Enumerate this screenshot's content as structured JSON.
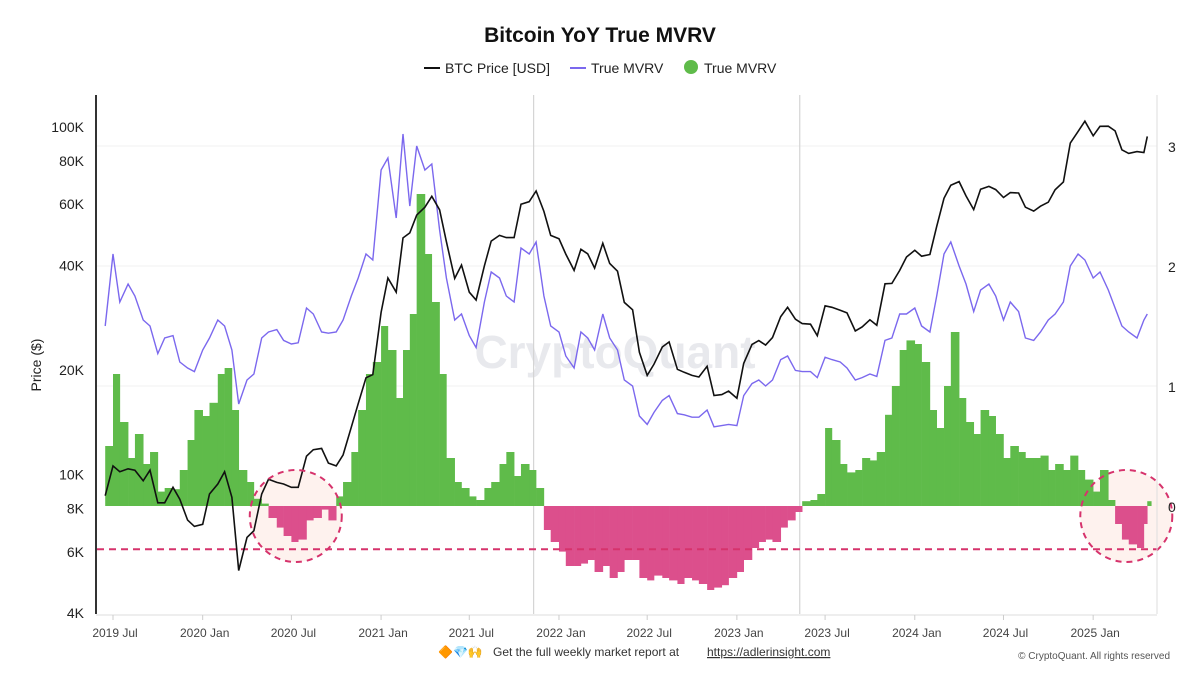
{
  "chart_data": {
    "type": "bar+line",
    "title": "Bitcoin YoY True MVRV",
    "legend": {
      "placement": "top-center",
      "items": [
        {
          "label": "BTC Price [USD]",
          "marker": "line",
          "color": "#111111"
        },
        {
          "label": "True MVRV",
          "marker": "line",
          "color": "#7b68ee"
        },
        {
          "label": "True MVRV",
          "marker": "dot",
          "color": "#5fbb4a"
        }
      ]
    },
    "ylabel_left": "Price ($)",
    "y_left_scale": "log",
    "y_left_range": [
      4000,
      120000
    ],
    "y_left_ticks": [
      {
        "value": 100000,
        "label": "100K"
      },
      {
        "value": 80000,
        "label": "80K"
      },
      {
        "value": 60000,
        "label": "60K"
      },
      {
        "value": 40000,
        "label": "40K"
      },
      {
        "value": 20000,
        "label": "20K"
      },
      {
        "value": 10000,
        "label": "10K"
      },
      {
        "value": 8000,
        "label": "8K"
      },
      {
        "value": 6000,
        "label": "6K"
      },
      {
        "value": 4000,
        "label": "4K"
      }
    ],
    "y_right_range": [
      -0.9,
      3.5
    ],
    "y_right_ticks": [
      {
        "value": 0,
        "label": "0"
      },
      {
        "value": 1,
        "label": "1"
      },
      {
        "value": 2,
        "label": "2"
      },
      {
        "value": 3,
        "label": "3"
      }
    ],
    "x_ticks": [
      {
        "date": "2019-07-01",
        "label": "2019 Jul"
      },
      {
        "date": "2020-01-01",
        "label": "2020 Jan"
      },
      {
        "date": "2020-07-01",
        "label": "2020 Jul"
      },
      {
        "date": "2021-01-01",
        "label": "2021 Jan"
      },
      {
        "date": "2021-07-01",
        "label": "2021 Jul"
      },
      {
        "date": "2022-01-01",
        "label": "2022 Jan"
      },
      {
        "date": "2022-07-01",
        "label": "2022 Jul"
      },
      {
        "date": "2023-01-01",
        "label": "2023 Jan"
      },
      {
        "date": "2023-07-01",
        "label": "2023 Jul"
      },
      {
        "date": "2024-01-01",
        "label": "2024 Jan"
      },
      {
        "date": "2024-07-01",
        "label": "2024 Jul"
      },
      {
        "date": "2025-01-01",
        "label": "2025 Jan"
      }
    ],
    "grid": "horizontal at right-axis ticks",
    "vertical_markers": [
      "2021-11-10",
      "2023-05-10"
    ],
    "threshold_line": {
      "value": -0.36,
      "axis": "right",
      "style": "dashed",
      "color": "#d6336c"
    },
    "highlight_circles": [
      {
        "date": "2020-07-10"
      },
      {
        "date": "2025-03-10"
      }
    ],
    "colors": {
      "price": "#111111",
      "mvrv": "#7b68ee",
      "positive": "#5fbb4a",
      "negative": "#dc4f8c"
    },
    "dates": [
      "2019-06-15",
      "2019-07-01",
      "2019-07-15",
      "2019-08-01",
      "2019-08-15",
      "2019-09-01",
      "2019-09-15",
      "2019-10-01",
      "2019-10-15",
      "2019-11-01",
      "2019-11-15",
      "2019-12-01",
      "2019-12-15",
      "2020-01-01",
      "2020-01-15",
      "2020-02-01",
      "2020-02-15",
      "2020-03-01",
      "2020-03-15",
      "2020-04-01",
      "2020-04-15",
      "2020-05-01",
      "2020-05-15",
      "2020-06-01",
      "2020-06-15",
      "2020-07-01",
      "2020-07-15",
      "2020-08-01",
      "2020-08-15",
      "2020-09-01",
      "2020-09-15",
      "2020-10-01",
      "2020-10-15",
      "2020-11-01",
      "2020-11-15",
      "2020-12-01",
      "2020-12-15",
      "2021-01-01",
      "2021-01-15",
      "2021-02-01",
      "2021-02-15",
      "2021-03-01",
      "2021-03-15",
      "2021-04-01",
      "2021-04-15",
      "2021-05-01",
      "2021-05-15",
      "2021-06-01",
      "2021-06-15",
      "2021-07-01",
      "2021-07-15",
      "2021-08-01",
      "2021-08-15",
      "2021-09-01",
      "2021-09-15",
      "2021-10-01",
      "2021-10-15",
      "2021-11-01",
      "2021-11-15",
      "2021-12-01",
      "2021-12-15",
      "2022-01-01",
      "2022-01-15",
      "2022-02-01",
      "2022-02-15",
      "2022-03-01",
      "2022-03-15",
      "2022-04-01",
      "2022-04-15",
      "2022-05-01",
      "2022-05-15",
      "2022-06-01",
      "2022-06-15",
      "2022-07-01",
      "2022-07-15",
      "2022-08-01",
      "2022-08-15",
      "2022-09-01",
      "2022-09-15",
      "2022-10-01",
      "2022-10-15",
      "2022-11-01",
      "2022-11-15",
      "2022-12-01",
      "2022-12-15",
      "2023-01-01",
      "2023-01-15",
      "2023-02-01",
      "2023-02-15",
      "2023-03-01",
      "2023-03-15",
      "2023-04-01",
      "2023-04-15",
      "2023-05-01",
      "2023-05-15",
      "2023-06-01",
      "2023-06-15",
      "2023-07-01",
      "2023-07-15",
      "2023-08-01",
      "2023-08-15",
      "2023-09-01",
      "2023-09-15",
      "2023-10-01",
      "2023-10-15",
      "2023-11-01",
      "2023-11-15",
      "2023-12-01",
      "2023-12-15",
      "2024-01-01",
      "2024-01-15",
      "2024-02-01",
      "2024-02-15",
      "2024-03-01",
      "2024-03-15",
      "2024-04-01",
      "2024-04-15",
      "2024-05-01",
      "2024-05-15",
      "2024-06-01",
      "2024-06-15",
      "2024-07-01",
      "2024-07-15",
      "2024-08-01",
      "2024-08-15",
      "2024-09-01",
      "2024-09-15",
      "2024-10-01",
      "2024-10-15",
      "2024-11-01",
      "2024-11-15",
      "2024-12-01",
      "2024-12-15",
      "2025-01-01",
      "2025-01-15",
      "2025-02-01",
      "2025-02-15",
      "2025-03-01",
      "2025-03-15",
      "2025-04-01",
      "2025-04-15",
      "2025-04-22"
    ],
    "series": [
      {
        "name": "BTC Price [USD]",
        "axis": "left",
        "kind": "line",
        "values": [
          8700,
          10600,
          10200,
          10400,
          10300,
          9600,
          10300,
          8300,
          8300,
          9200,
          8500,
          7400,
          7100,
          7200,
          8800,
          9400,
          10200,
          8600,
          5300,
          6600,
          6900,
          8800,
          9700,
          9500,
          9400,
          9200,
          9200,
          11300,
          11800,
          11900,
          10800,
          10600,
          11400,
          13700,
          16000,
          19000,
          19400,
          29300,
          36800,
          33500,
          48000,
          49600,
          55800,
          58800,
          63200,
          57800,
          46800,
          36700,
          40100,
          33500,
          31800,
          39900,
          47000,
          48800,
          48100,
          48100,
          60000,
          61000,
          65500,
          57200,
          48800,
          47700,
          43100,
          38700,
          44500,
          43200,
          39300,
          46300,
          40500,
          38500,
          31300,
          29800,
          22500,
          19300,
          20800,
          23300,
          24100,
          20100,
          19700,
          19300,
          19100,
          20500,
          16900,
          17000,
          17400,
          16600,
          20900,
          23700,
          24300,
          23600,
          24800,
          28500,
          30300,
          28000,
          27200,
          27100,
          25100,
          30600,
          30300,
          29700,
          29200,
          25900,
          26600,
          27900,
          26900,
          35400,
          35500,
          38700,
          42300,
          44200,
          42500,
          43000,
          51800,
          62400,
          68000,
          69700,
          63400,
          57900,
          66200,
          67500,
          66100,
          62700,
          64800,
          64600,
          58800,
          57300,
          59200,
          60800,
          66000,
          69500,
          90000,
          97200,
          104000,
          94400,
          100500,
          100600,
          97500,
          86000,
          84000,
          85000,
          84500,
          94000
        ]
      },
      {
        "name": "True MVRV",
        "axis": "right",
        "kind": "line",
        "values": [
          1.5,
          2.1,
          1.7,
          1.85,
          1.75,
          1.55,
          1.5,
          1.27,
          1.4,
          1.42,
          1.2,
          1.15,
          1.12,
          1.3,
          1.4,
          1.55,
          1.5,
          1.3,
          0.85,
          1.05,
          1.1,
          1.4,
          1.45,
          1.47,
          1.38,
          1.35,
          1.36,
          1.65,
          1.6,
          1.45,
          1.44,
          1.45,
          1.55,
          1.75,
          1.9,
          2.1,
          2.05,
          2.8,
          2.9,
          2.4,
          3.1,
          2.5,
          3.0,
          2.8,
          2.85,
          2.3,
          1.9,
          1.55,
          1.6,
          1.42,
          1.32,
          1.7,
          1.95,
          1.9,
          1.75,
          1.7,
          2.15,
          2.1,
          2.2,
          1.75,
          1.5,
          1.45,
          1.25,
          1.15,
          1.45,
          1.4,
          1.3,
          1.6,
          1.4,
          1.3,
          1.05,
          1.0,
          0.75,
          0.68,
          0.78,
          0.88,
          0.92,
          0.77,
          0.76,
          0.74,
          0.74,
          0.8,
          0.66,
          0.67,
          0.68,
          0.67,
          0.92,
          1.02,
          1.05,
          1.0,
          1.05,
          1.22,
          1.25,
          1.13,
          1.12,
          1.12,
          1.07,
          1.24,
          1.22,
          1.2,
          1.15,
          1.05,
          1.07,
          1.1,
          1.08,
          1.38,
          1.4,
          1.6,
          1.6,
          1.65,
          1.5,
          1.45,
          1.75,
          2.1,
          2.2,
          2.0,
          1.85,
          1.62,
          1.8,
          1.85,
          1.75,
          1.55,
          1.7,
          1.62,
          1.4,
          1.38,
          1.45,
          1.55,
          1.6,
          1.7,
          2.0,
          2.1,
          2.05,
          1.9,
          1.95,
          1.8,
          1.65,
          1.5,
          1.45,
          1.4,
          1.55,
          1.6
        ]
      },
      {
        "name": "True MVRV",
        "axis": "right",
        "kind": "bar",
        "values": [
          0.5,
          1.1,
          0.7,
          0.4,
          0.6,
          0.35,
          0.45,
          0.12,
          0.15,
          0.14,
          0.3,
          0.55,
          0.8,
          0.75,
          0.86,
          1.1,
          1.15,
          0.8,
          0.3,
          0.2,
          0.06,
          0.02,
          -0.1,
          -0.18,
          -0.25,
          -0.3,
          -0.28,
          -0.12,
          -0.1,
          -0.03,
          -0.12,
          0.08,
          0.2,
          0.45,
          0.8,
          1.1,
          1.2,
          1.5,
          1.3,
          0.9,
          1.3,
          1.6,
          2.6,
          2.1,
          1.7,
          1.1,
          0.4,
          0.2,
          0.15,
          0.08,
          0.05,
          0.15,
          0.2,
          0.35,
          0.45,
          0.25,
          0.35,
          0.3,
          0.15,
          -0.2,
          -0.3,
          -0.38,
          -0.5,
          -0.5,
          -0.48,
          -0.45,
          -0.55,
          -0.5,
          -0.6,
          -0.55,
          -0.45,
          -0.45,
          -0.6,
          -0.62,
          -0.58,
          -0.6,
          -0.62,
          -0.65,
          -0.6,
          -0.62,
          -0.65,
          -0.7,
          -0.68,
          -0.66,
          -0.6,
          -0.55,
          -0.45,
          -0.35,
          -0.3,
          -0.28,
          -0.3,
          -0.18,
          -0.12,
          -0.05,
          0.04,
          0.05,
          0.1,
          0.65,
          0.55,
          0.35,
          0.28,
          0.3,
          0.4,
          0.38,
          0.45,
          0.76,
          1.0,
          1.3,
          1.38,
          1.35,
          1.2,
          0.8,
          0.65,
          1.0,
          1.45,
          0.9,
          0.7,
          0.6,
          0.8,
          0.75,
          0.6,
          0.4,
          0.5,
          0.45,
          0.4,
          0.4,
          0.42,
          0.3,
          0.35,
          0.3,
          0.42,
          0.3,
          0.22,
          0.12,
          0.3,
          0.05,
          -0.15,
          -0.28,
          -0.32,
          -0.35,
          -0.15,
          0.04
        ]
      }
    ]
  },
  "watermark": "CryptoQuant",
  "footer": {
    "emojis": "🔶💎🙌",
    "text": "Get the full weekly market report at",
    "link": "https://adlerinsight.com",
    "copyright": "© CryptoQuant. All rights reserved"
  }
}
